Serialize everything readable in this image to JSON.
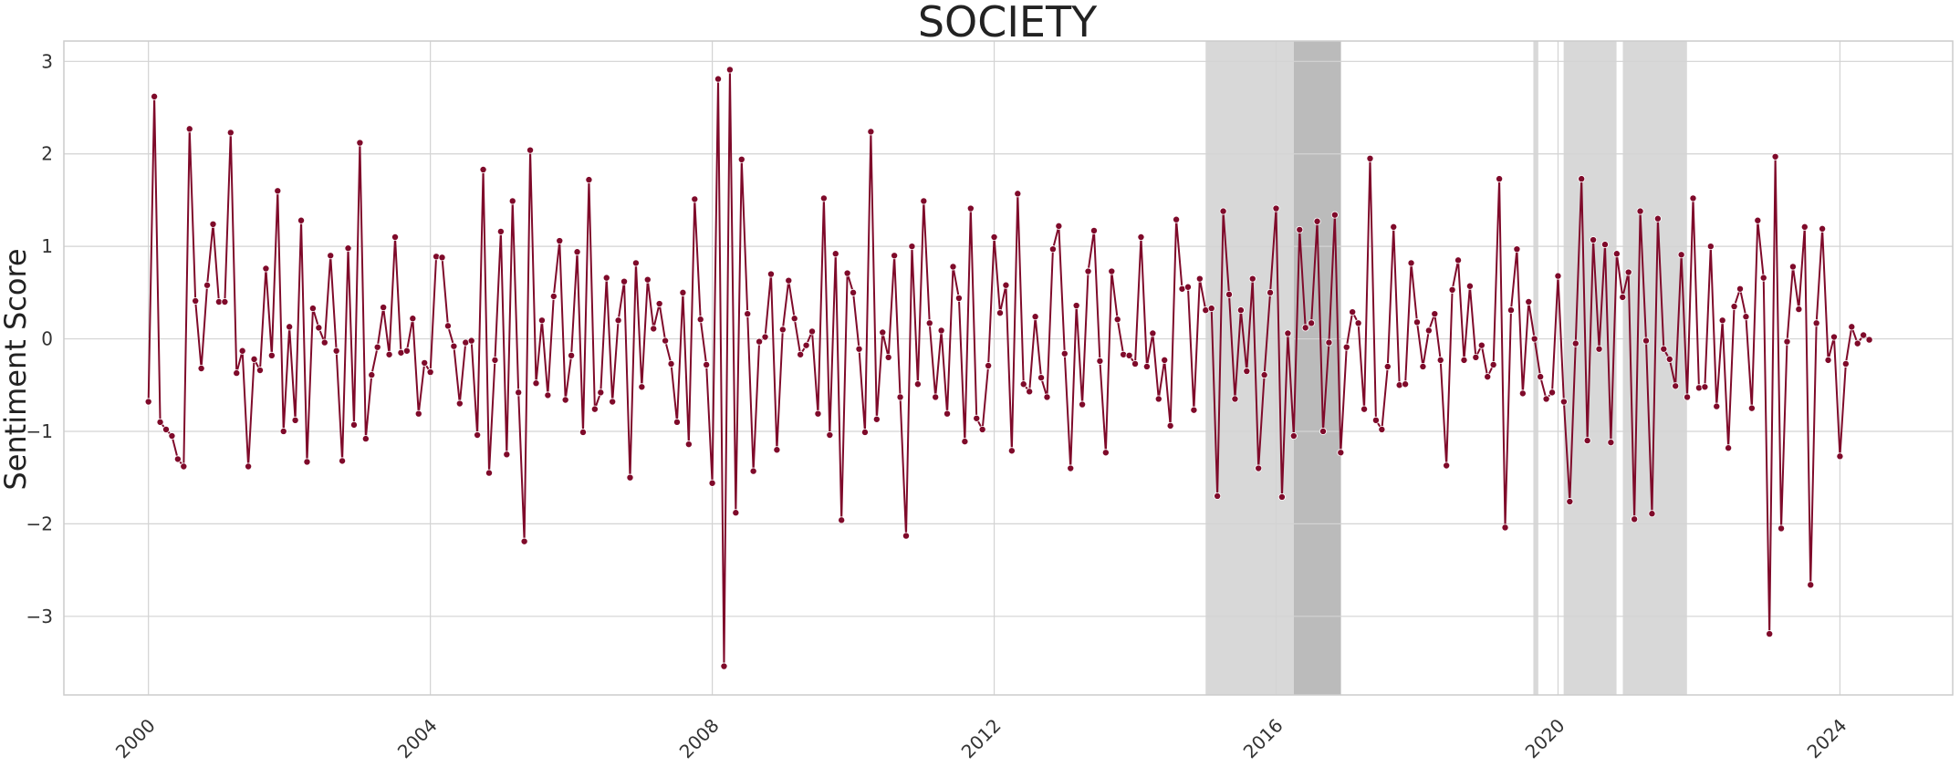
{
  "chart_data": {
    "type": "line",
    "title": "SOCIETY",
    "xlabel": "",
    "ylabel": "Sentiment Score",
    "x_ticks": [
      "2000",
      "2004",
      "2008",
      "2012",
      "2016",
      "2020",
      "2024"
    ],
    "y_ticks": [
      -3,
      -2,
      -1,
      0,
      1,
      2,
      3
    ],
    "xlim": [
      1998.8,
      2025.6
    ],
    "ylim": [
      -3.85,
      3.22
    ],
    "grid": true,
    "legend": "none",
    "line_color": "#7f0a2a",
    "shaded_periods": [
      {
        "start": 2015.0,
        "end": 2016.25,
        "color": "#d8d8d8"
      },
      {
        "start": 2016.25,
        "end": 2016.92,
        "color": "#bbbbbb"
      },
      {
        "start": 2019.65,
        "end": 2019.72,
        "color": "#d8d8d8"
      },
      {
        "start": 2020.08,
        "end": 2020.83,
        "color": "#d8d8d8"
      },
      {
        "start": 2020.92,
        "end": 2021.83,
        "color": "#d8d8d8"
      }
    ],
    "start_year": 2000,
    "points_per_year": 12,
    "series": [
      {
        "values": [
          -0.68,
          2.62,
          -0.9,
          -0.98,
          -1.05,
          -1.3,
          -1.38,
          2.27,
          0.41,
          -0.32,
          0.58,
          1.24,
          0.4,
          0.4,
          2.23,
          -0.37,
          -0.13,
          -1.38,
          -0.22,
          -0.34,
          0.76,
          -0.18,
          1.6,
          -1.0,
          0.13,
          -0.88,
          1.28,
          -1.33,
          0.33,
          0.12,
          -0.04,
          0.9,
          -0.13,
          -1.32,
          0.98,
          -0.93,
          2.12,
          -1.08,
          -0.39,
          -0.09,
          0.34,
          -0.17,
          1.1,
          -0.15,
          -0.13,
          0.22,
          -0.81,
          -0.26,
          -0.36,
          0.89,
          0.88,
          0.14,
          -0.08,
          -0.7,
          -0.04,
          -0.02,
          -1.04,
          1.83,
          -1.45,
          -0.23,
          1.16,
          -1.25,
          1.49,
          -0.58,
          -2.19,
          2.04,
          -0.48,
          0.2,
          -0.61,
          0.46,
          1.06,
          -0.66,
          -0.18,
          0.94,
          -1.01,
          1.72,
          -0.76,
          -0.58,
          0.66,
          -0.68,
          0.2,
          0.62,
          -1.5,
          0.82,
          -0.52,
          0.64,
          0.11,
          0.38,
          -0.02,
          -0.27,
          -0.9,
          0.5,
          -1.14,
          1.51,
          0.21,
          -0.28,
          -1.56,
          2.81,
          -3.54,
          2.91,
          -1.88,
          1.94,
          0.27,
          -1.43,
          -0.03,
          0.02,
          0.7,
          -1.2,
          0.1,
          0.63,
          0.22,
          -0.17,
          -0.07,
          0.08,
          -0.81,
          1.52,
          -1.04,
          0.92,
          -1.96,
          0.71,
          0.5,
          -0.11,
          -1.01,
          2.24,
          -0.87,
          0.07,
          -0.2,
          0.9,
          -0.63,
          -2.13,
          1.0,
          -0.49,
          1.49,
          0.17,
          -0.63,
          0.09,
          -0.81,
          0.78,
          0.44,
          -1.11,
          1.41,
          -0.86,
          -0.98,
          -0.29,
          1.1,
          0.28,
          0.58,
          -1.21,
          1.57,
          -0.49,
          -0.57,
          0.24,
          -0.42,
          -0.63,
          0.97,
          1.22,
          -0.16,
          -1.4,
          0.36,
          -0.71,
          0.73,
          1.17,
          -0.24,
          -1.23,
          0.73,
          0.21,
          -0.17,
          -0.18,
          -0.27,
          1.1,
          -0.3,
          0.06,
          -0.65,
          -0.23,
          -0.94,
          1.29,
          0.54,
          0.56,
          -0.77,
          0.65,
          0.31,
          0.33,
          -1.7,
          1.38,
          0.48,
          -0.65,
          0.31,
          -0.35,
          0.65,
          -1.4,
          -0.39,
          0.5,
          1.41,
          -1.71,
          0.06,
          -1.05,
          1.18,
          0.12,
          0.17,
          1.27,
          -1.0,
          -0.04,
          1.34,
          -1.23,
          -0.09,
          0.29,
          0.17,
          -0.76,
          1.95,
          -0.88,
          -0.98,
          -0.3,
          1.21,
          -0.5,
          -0.49,
          0.82,
          0.18,
          -0.3,
          0.09,
          0.27,
          -0.23,
          -1.37,
          0.53,
          0.85,
          -0.23,
          0.57,
          -0.2,
          -0.07,
          -0.41,
          -0.28,
          1.73,
          -2.04,
          0.31,
          0.97,
          -0.59,
          0.4,
          0.0,
          -0.41,
          -0.65,
          -0.58,
          0.68,
          -0.68,
          -1.76,
          -0.05,
          1.73,
          -1.1,
          1.07,
          -0.11,
          1.02,
          -1.12,
          0.92,
          0.45,
          0.72,
          -1.95,
          1.38,
          -0.02,
          -1.89,
          1.3,
          -0.11,
          -0.22,
          -0.51,
          0.91,
          -0.63,
          1.52,
          -0.53,
          -0.52,
          1.0,
          -0.73,
          0.2,
          -1.18,
          0.35,
          0.54,
          0.24,
          -0.75,
          1.28,
          0.66,
          -3.19,
          1.97,
          -2.05,
          -0.03,
          0.78,
          0.32,
          1.21,
          -2.66,
          0.17,
          1.19,
          -0.23,
          0.02,
          -1.27,
          -0.27,
          0.13,
          -0.05,
          0.04,
          -0.01
        ]
      }
    ]
  }
}
